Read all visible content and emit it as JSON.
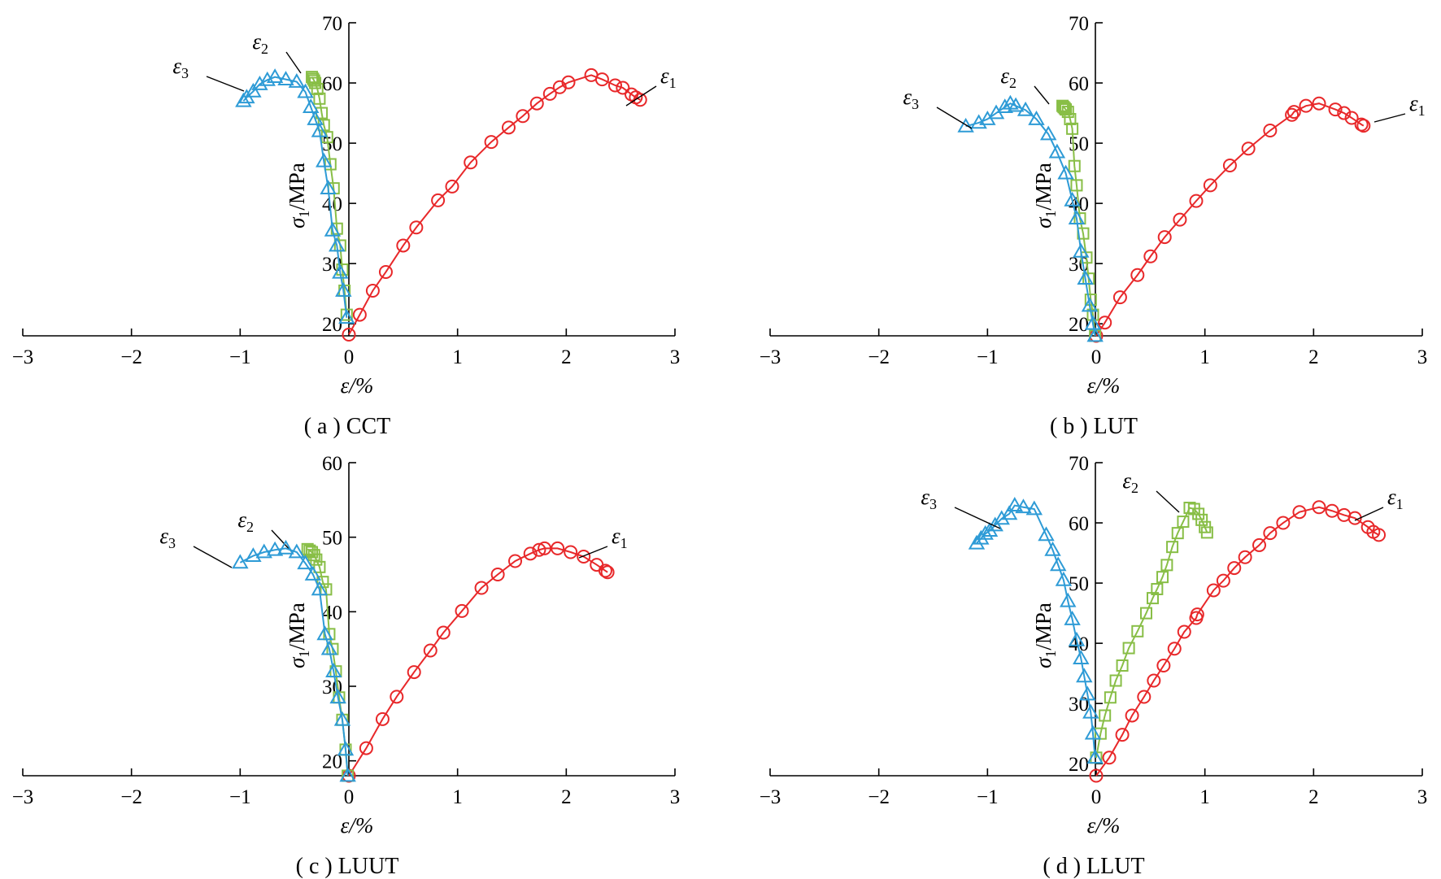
{
  "chart_data": [
    {
      "type": "scatter",
      "caption": "( a ) CCT",
      "xlabel": "ε/%",
      "ylabel": "σ1/MPa",
      "xlim": [
        -3,
        3
      ],
      "ylim": [
        18,
        70
      ],
      "xticks": [
        "−3",
        "−2",
        "−1",
        "0",
        "1",
        "2",
        "3"
      ],
      "yticks": [
        "20",
        "30",
        "40",
        "50",
        "60",
        "70"
      ],
      "series": [
        {
          "name": "ε1",
          "color": "#e8282a",
          "marker": "circle",
          "x": [
            0,
            0.1,
            0.22,
            0.34,
            0.5,
            0.62,
            0.82,
            0.95,
            1.12,
            1.31,
            1.47,
            1.6,
            1.73,
            1.85,
            1.94,
            2.02,
            2.23,
            2.33,
            2.45,
            2.52,
            2.6,
            2.64,
            2.68
          ],
          "y": [
            18.2,
            21.5,
            25.5,
            28.6,
            33,
            36,
            40.5,
            42.8,
            46.8,
            50.2,
            52.6,
            54.5,
            56.6,
            58.2,
            59.3,
            60.1,
            61.3,
            60.6,
            59.6,
            59.2,
            58.1,
            57.6,
            57.2
          ]
        },
        {
          "name": "ε2",
          "color": "#88be46",
          "marker": "square",
          "x": [
            -0.02,
            -0.04,
            -0.06,
            -0.08,
            -0.11,
            -0.14,
            -0.17,
            -0.2,
            -0.23,
            -0.25,
            -0.27,
            -0.29,
            -0.31,
            -0.32,
            -0.33,
            -0.34
          ],
          "y": [
            21.5,
            25.5,
            29,
            33,
            35.8,
            42.5,
            46.5,
            51,
            53,
            55,
            57.4,
            59,
            60,
            60.4,
            60.7,
            61
          ]
        },
        {
          "name": "ε3",
          "color": "#2e9bd6",
          "marker": "triangle",
          "x": [
            -0.02,
            -0.05,
            -0.08,
            -0.11,
            -0.15,
            -0.19,
            -0.23,
            -0.27,
            -0.31,
            -0.35,
            -0.4,
            -0.48,
            -0.58,
            -0.68,
            -0.75,
            -0.82,
            -0.88,
            -0.94,
            -0.97
          ],
          "y": [
            21,
            25.5,
            28.5,
            33,
            35.5,
            42.5,
            47,
            52,
            54,
            56,
            58.5,
            60.2,
            60.6,
            61,
            60.5,
            59.8,
            58.6,
            57.6,
            57
          ]
        }
      ]
    },
    {
      "type": "scatter",
      "caption": "( b ) LUT",
      "xlabel": "ε/%",
      "ylabel": "σ1/MPa",
      "xlim": [
        -3,
        3
      ],
      "ylim": [
        18,
        70
      ],
      "xticks": [
        "−3",
        "−2",
        "−1",
        "0",
        "1",
        "2",
        "3"
      ],
      "yticks": [
        "20",
        "30",
        "40",
        "50",
        "60",
        "70"
      ],
      "series": [
        {
          "name": "ε1",
          "color": "#e8282a",
          "marker": "circle",
          "x": [
            0,
            0.08,
            0.22,
            0.38,
            0.5,
            0.63,
            0.77,
            0.92,
            1.05,
            1.23,
            1.4,
            1.6,
            1.8,
            1.82,
            1.93,
            2.05,
            2.2,
            2.28,
            2.35,
            2.44,
            2.46
          ],
          "y": [
            18,
            20.2,
            24.4,
            28.1,
            31.2,
            34.4,
            37.3,
            40.4,
            43,
            46.3,
            49.1,
            52.1,
            54.7,
            55.2,
            56.2,
            56.6,
            55.6,
            55,
            54.2,
            53.1,
            52.9
          ]
        },
        {
          "name": "ε2",
          "color": "#88be46",
          "marker": "square",
          "x": [
            -0.01,
            -0.03,
            -0.05,
            -0.07,
            -0.09,
            -0.12,
            -0.15,
            -0.18,
            -0.2,
            -0.22,
            -0.24,
            -0.26,
            -0.28,
            -0.29,
            -0.3,
            -0.31
          ],
          "y": [
            18,
            21.5,
            24,
            27.5,
            31,
            35,
            37.5,
            43,
            46.2,
            52.4,
            54,
            55.2,
            55.6,
            55.8,
            56,
            56.2
          ]
        },
        {
          "name": "ε3",
          "color": "#2e9bd6",
          "marker": "triangle",
          "x": [
            -0.01,
            -0.03,
            -0.06,
            -0.1,
            -0.14,
            -0.18,
            -0.22,
            -0.28,
            -0.36,
            -0.44,
            -0.55,
            -0.65,
            -0.74,
            -0.79,
            -0.84,
            -0.92,
            -1.0,
            -1.08,
            -1.2
          ],
          "y": [
            18,
            20,
            23,
            27.5,
            32,
            37.5,
            40.5,
            45,
            48.5,
            51.5,
            54,
            55.5,
            56.2,
            56.6,
            56,
            55,
            54,
            53.4,
            52.8
          ]
        }
      ]
    },
    {
      "type": "scatter",
      "caption": "( c ) LUUT",
      "xlabel": "ε/%",
      "ylabel": "σ1/MPa",
      "xlim": [
        -3,
        3
      ],
      "ylim": [
        18,
        60
      ],
      "xticks": [
        "−3",
        "−2",
        "−1",
        "0",
        "1",
        "2",
        "3"
      ],
      "yticks": [
        "20",
        "30",
        "40",
        "50",
        "60"
      ],
      "series": [
        {
          "name": "ε1",
          "color": "#e8282a",
          "marker": "circle",
          "x": [
            0,
            0.16,
            0.31,
            0.44,
            0.6,
            0.75,
            0.87,
            1.04,
            1.22,
            1.37,
            1.53,
            1.67,
            1.75,
            1.8,
            1.92,
            2.04,
            2.16,
            2.28,
            2.36,
            2.38
          ],
          "y": [
            18,
            21.7,
            25.6,
            28.6,
            31.9,
            34.8,
            37.2,
            40.1,
            43.2,
            45,
            46.8,
            47.8,
            48.3,
            48.5,
            48.5,
            48,
            47.4,
            46.3,
            45.5,
            45.3
          ]
        },
        {
          "name": "ε2",
          "color": "#88be46",
          "marker": "square",
          "x": [
            -0.01,
            -0.03,
            -0.06,
            -0.09,
            -0.12,
            -0.15,
            -0.18,
            -0.21,
            -0.24,
            -0.27,
            -0.3,
            -0.32,
            -0.34,
            -0.36,
            -0.38
          ],
          "y": [
            18,
            21.5,
            25.5,
            28.5,
            32,
            35,
            37,
            43,
            44,
            46,
            47,
            47.6,
            48,
            48.2,
            48.4
          ]
        },
        {
          "name": "ε3",
          "color": "#2e9bd6",
          "marker": "triangle",
          "x": [
            -0.01,
            -0.03,
            -0.06,
            -0.1,
            -0.14,
            -0.18,
            -0.22,
            -0.27,
            -0.33,
            -0.4,
            -0.48,
            -0.58,
            -0.68,
            -0.78,
            -0.88,
            -1.0
          ],
          "y": [
            18,
            21.5,
            25.5,
            28.5,
            32,
            35,
            37,
            43,
            45,
            46.5,
            48,
            48.5,
            48.3,
            48,
            47.5,
            46.6
          ]
        }
      ]
    },
    {
      "type": "scatter",
      "caption": "( d ) LLUT",
      "xlabel": "ε/%",
      "ylabel": "σ1/MPa",
      "xlim": [
        -3,
        3
      ],
      "ylim": [
        18,
        70
      ],
      "xticks": [
        "−3",
        "−2",
        "−1",
        "0",
        "1",
        "2",
        "3"
      ],
      "yticks": [
        "20",
        "30",
        "40",
        "50",
        "60",
        "70"
      ],
      "series": [
        {
          "name": "ε1",
          "color": "#e8282a",
          "marker": "circle",
          "x": [
            0,
            0.12,
            0.24,
            0.33,
            0.44,
            0.53,
            0.62,
            0.72,
            0.81,
            0.92,
            0.93,
            1.08,
            1.17,
            1.27,
            1.37,
            1.5,
            1.6,
            1.72,
            1.87,
            2.05,
            2.17,
            2.28,
            2.38,
            2.5,
            2.55,
            2.6
          ],
          "y": [
            18,
            21,
            24.8,
            28,
            31.1,
            33.8,
            36.3,
            39.1,
            41.9,
            44.2,
            44.8,
            48.8,
            50.4,
            52.5,
            54.3,
            56.3,
            58.3,
            60,
            61.8,
            62.6,
            62,
            61.3,
            60.8,
            59.3,
            58.5,
            58
          ]
        },
        {
          "name": "ε2",
          "color": "#88be46",
          "marker": "square",
          "x": [
            0,
            0.04,
            0.08,
            0.13,
            0.18,
            0.24,
            0.3,
            0.38,
            0.46,
            0.52,
            0.56,
            0.61,
            0.65,
            0.7,
            0.75,
            0.8,
            0.86,
            0.9,
            0.94,
            0.97,
            1.0,
            1.02
          ],
          "y": [
            21,
            25,
            28,
            31,
            33.8,
            36.3,
            39.2,
            42,
            45,
            47.5,
            49,
            51,
            53,
            56,
            58.3,
            60.2,
            62.5,
            62.3,
            61.5,
            60.5,
            59.3,
            58.4
          ]
        },
        {
          "name": "ε3",
          "color": "#2e9bd6",
          "marker": "triangle",
          "x": [
            -0.01,
            -0.03,
            -0.05,
            -0.08,
            -0.11,
            -0.14,
            -0.18,
            -0.22,
            -0.26,
            -0.3,
            -0.35,
            -0.4,
            -0.46,
            -0.57,
            -0.67,
            -0.75,
            -0.8,
            -0.87,
            -0.93,
            -0.98,
            -1.02,
            -1.06,
            -1.1
          ],
          "y": [
            21,
            25,
            28.5,
            31.5,
            34.5,
            37.5,
            40.5,
            44,
            47,
            50.5,
            53,
            55.5,
            58,
            62.3,
            62.6,
            62.9,
            61.5,
            60.7,
            59.6,
            58.7,
            58.2,
            57.4,
            56.6
          ]
        }
      ]
    }
  ]
}
